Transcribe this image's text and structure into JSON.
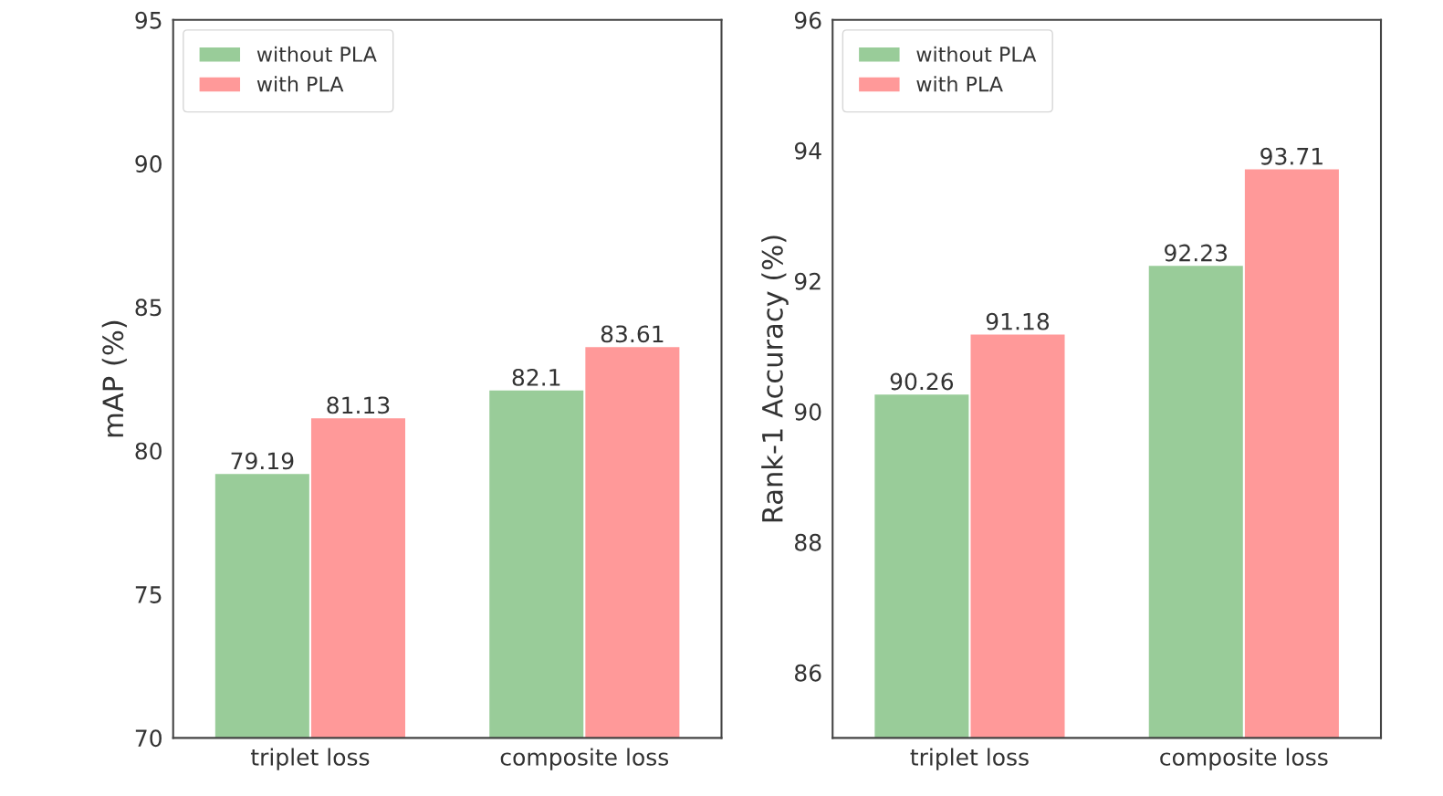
{
  "chart_data": [
    {
      "type": "bar",
      "ylabel": "mAP (%)",
      "categories": [
        "triplet loss",
        "composite loss"
      ],
      "series": [
        {
          "name": "without PLA",
          "color": "#99cc99",
          "values": [
            79.19,
            82.1
          ]
        },
        {
          "name": "with PLA",
          "color": "#ff9999",
          "values": [
            81.13,
            83.61
          ]
        }
      ],
      "ylim": [
        70,
        95
      ],
      "yticks": [
        70,
        75,
        80,
        85,
        90,
        95
      ],
      "data_labels": true,
      "legend": "top left",
      "grid": false
    },
    {
      "type": "bar",
      "ylabel": "Rank-1 Accuracy (%)",
      "categories": [
        "triplet loss",
        "composite loss"
      ],
      "series": [
        {
          "name": "without PLA",
          "color": "#99cc99",
          "values": [
            90.26,
            92.23
          ]
        },
        {
          "name": "with PLA",
          "color": "#ff9999",
          "values": [
            91.18,
            93.71
          ]
        }
      ],
      "ylim": [
        85,
        96
      ],
      "yticks": [
        86,
        88,
        90,
        92,
        94,
        96
      ],
      "data_labels": true,
      "legend": "top left",
      "grid": false
    }
  ]
}
